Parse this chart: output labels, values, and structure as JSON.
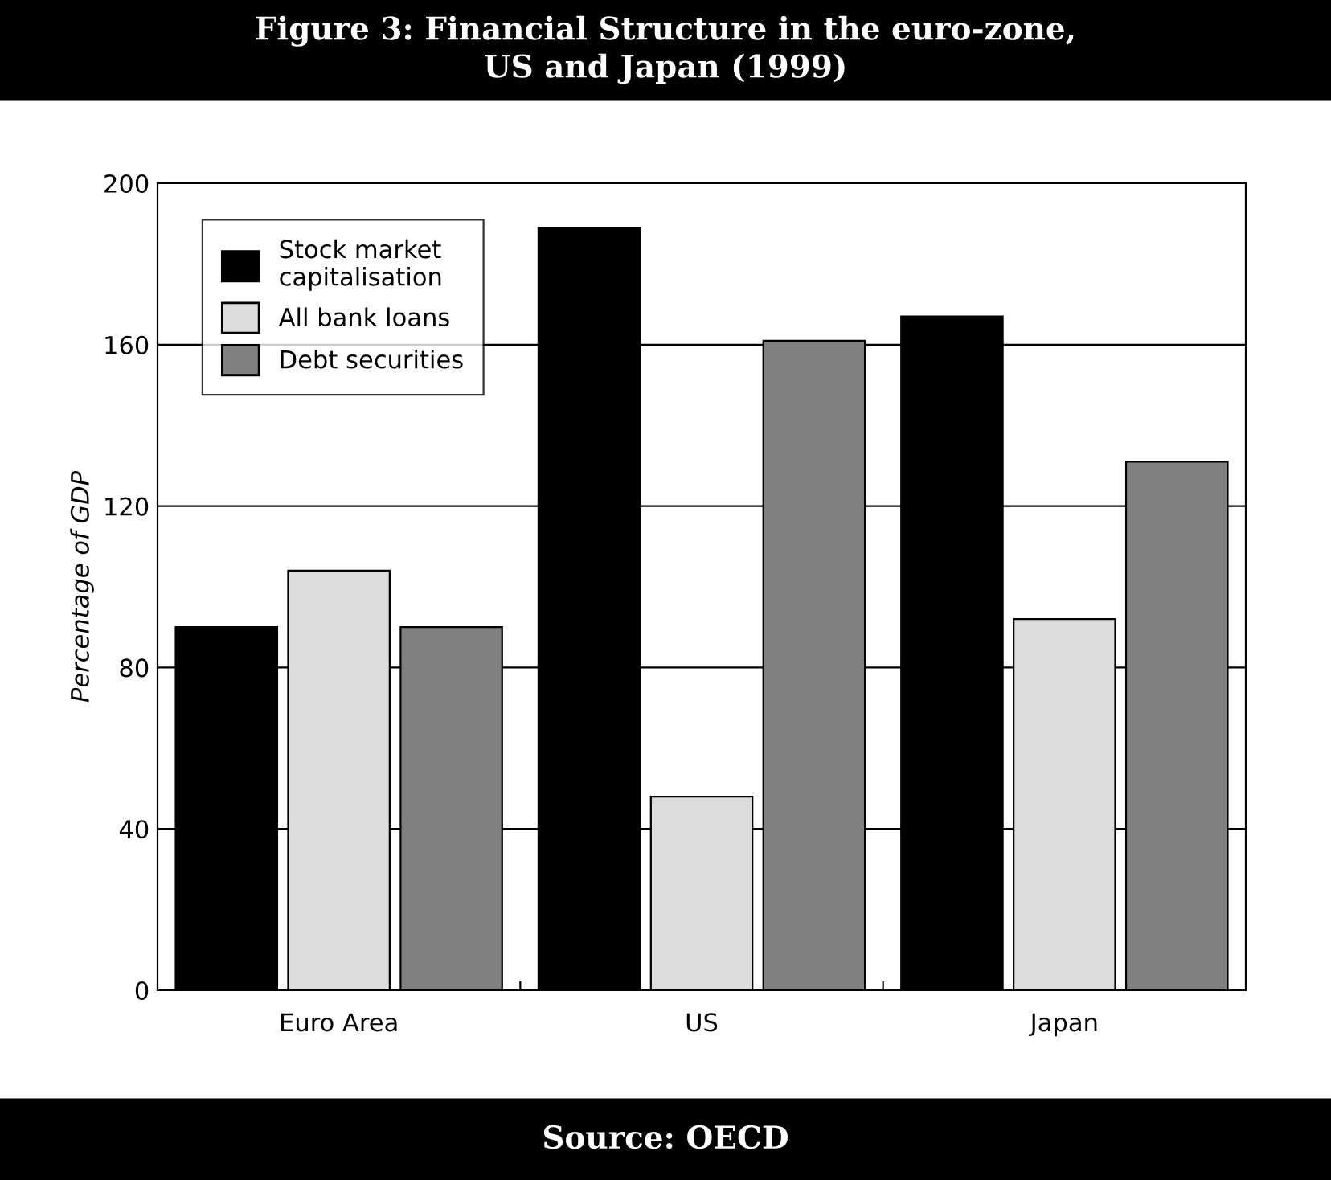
{
  "chart_data": {
    "type": "bar",
    "title": "Figure 3: Financial Structure in the euro-zone,\nUS and Japan (1999)",
    "ylabel": "Percentage of GDP",
    "categories": [
      "Euro Area",
      "US",
      "Japan"
    ],
    "series": [
      {
        "name": "Stock market\ncapitalisation",
        "color": "#000000",
        "values": [
          90,
          189,
          167
        ]
      },
      {
        "name": "All bank loans",
        "color": "#dcdcdc",
        "values": [
          104,
          48,
          92
        ]
      },
      {
        "name": "Debt securities",
        "color": "#808080",
        "values": [
          90,
          161,
          131
        ]
      }
    ],
    "ylim": [
      0,
      200
    ],
    "yticks": [
      0,
      40,
      80,
      120,
      160,
      200
    ],
    "grid": "y",
    "legend": "top left",
    "annotations": [
      "Source: OECD"
    ]
  }
}
